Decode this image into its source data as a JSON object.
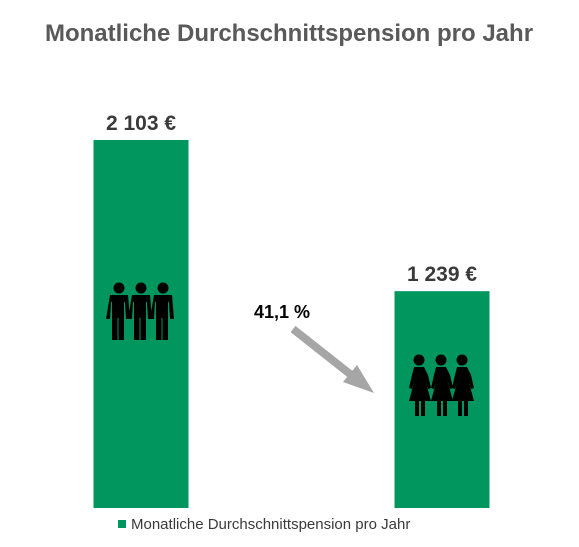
{
  "chart_data": {
    "type": "bar",
    "title": "Monatliche Durchschnittspension pro Jahr",
    "categories": [
      "Männer",
      "Frauen"
    ],
    "series": [
      {
        "name": "Monatliche Durchschnittspension pro Jahr",
        "values": [
          2103,
          1239
        ],
        "data_labels": [
          "2 103 €",
          "1 239 €"
        ],
        "color": "#00965E"
      }
    ],
    "ylim": [
      0,
      2400
    ],
    "grid": false,
    "legend": "bottom",
    "annotation": {
      "text": "41,1 %",
      "arrow_color": "#A6A6A6"
    },
    "icons": [
      "men-group-icon",
      "women-group-icon"
    ]
  }
}
